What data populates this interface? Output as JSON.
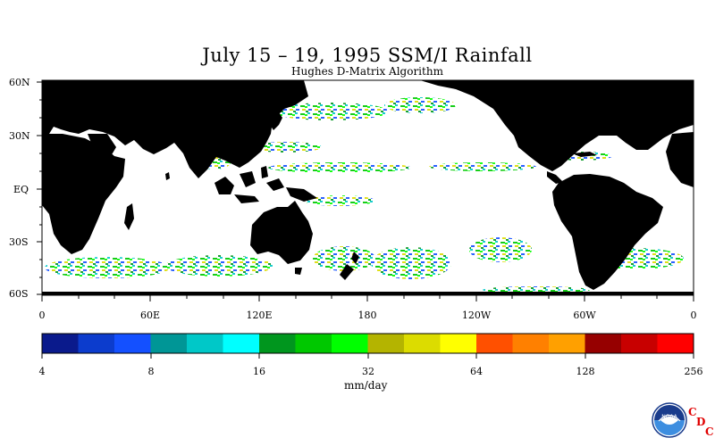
{
  "title": "July 15 – 19, 1995 SSM/I Rainfall",
  "subtitle": "Hughes D-Matrix Algorithm",
  "lat_labels": [
    "60N",
    "30N",
    "EQ",
    "30S",
    "60S"
  ],
  "lon_labels": [
    "0",
    "60E",
    "120E",
    "180",
    "120W",
    "60W",
    "0"
  ],
  "colorbar": {
    "tick_labels": [
      "4",
      "8",
      "16",
      "32",
      "64",
      "128",
      "256"
    ],
    "unit": "mm/day",
    "colors": [
      "#0a1a8c",
      "#0c3ccd",
      "#1450ff",
      "#009696",
      "#00c8c8",
      "#00ffff",
      "#00961e",
      "#00c800",
      "#00ff00",
      "#b4b400",
      "#dcdc00",
      "#ffff00",
      "#ff5000",
      "#ff8000",
      "#ffa000",
      "#960000",
      "#c80000",
      "#ff0000"
    ]
  },
  "land_color": "#000000",
  "logo": {
    "text": "NOAA",
    "credit": [
      "C",
      "D",
      "C"
    ]
  }
}
